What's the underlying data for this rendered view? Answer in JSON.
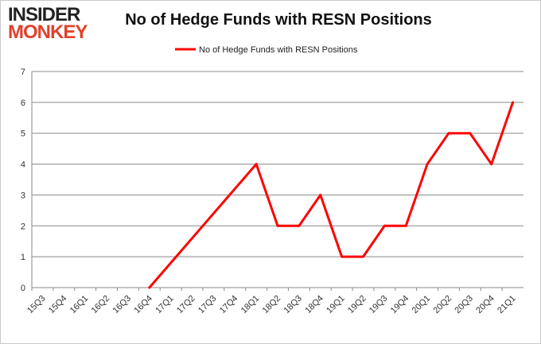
{
  "logo": {
    "line1": "INSIDER",
    "line2": "MONKEY"
  },
  "chart_data": {
    "type": "line",
    "title": "No of Hedge Funds with RESN Positions",
    "xlabel": "",
    "ylabel": "",
    "ylim": [
      0,
      7
    ],
    "yticks": [
      0,
      1,
      2,
      3,
      4,
      5,
      6,
      7
    ],
    "grid": true,
    "legend_position": "top-center",
    "categories": [
      "15Q3",
      "15Q4",
      "16Q1",
      "16Q2",
      "16Q3",
      "16Q4",
      "17Q1",
      "17Q2",
      "17Q3",
      "17Q4",
      "18Q1",
      "18Q2",
      "18Q3",
      "18Q4",
      "19Q1",
      "19Q2",
      "19Q3",
      "19Q4",
      "20Q1",
      "20Q2",
      "20Q3",
      "20Q4",
      "21Q1"
    ],
    "series": [
      {
        "name": "No of Hedge Funds with RESN Positions",
        "color": "#ff0000",
        "values": [
          null,
          null,
          null,
          null,
          null,
          0,
          null,
          null,
          null,
          null,
          4,
          2,
          2,
          3,
          1,
          1,
          2,
          2,
          4,
          5,
          5,
          4,
          6
        ]
      }
    ]
  }
}
